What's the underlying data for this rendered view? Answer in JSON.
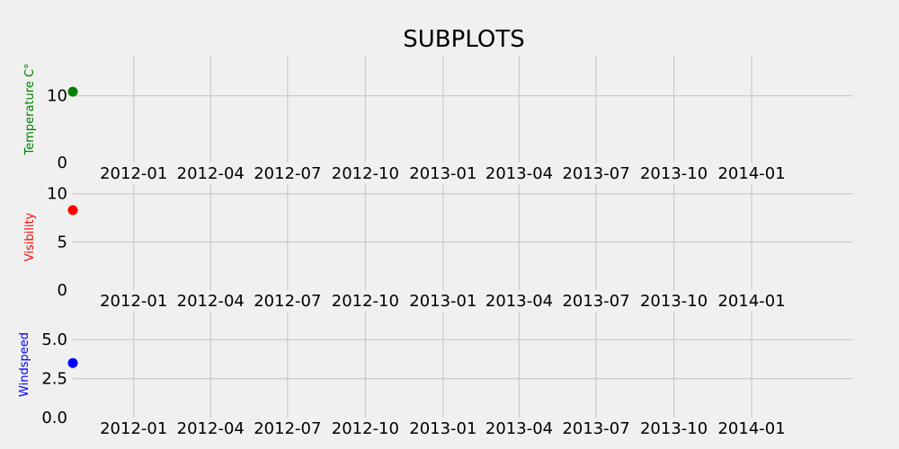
{
  "chart_data": {
    "title": "SUBPLOTS",
    "type": "scatter",
    "x_range": [
      "2011-10-21",
      "2014-04-30"
    ],
    "x_ticks": [
      "2012-01",
      "2012-04",
      "2012-07",
      "2012-10",
      "2013-01",
      "2013-04",
      "2013-07",
      "2013-10",
      "2014-01"
    ],
    "grid": true,
    "subplots": [
      {
        "ylabel": "Temperature C°",
        "color": "#008000",
        "ylim": [
          0,
          16
        ],
        "yticks": [
          "0",
          "10"
        ],
        "ytick_values": [
          0,
          10
        ],
        "points": [
          {
            "x": "2011-10-21",
            "y": 10.6
          }
        ]
      },
      {
        "ylabel": "Visibility",
        "color": "#ff0000",
        "ylim": [
          0,
          11
        ],
        "yticks": [
          "0",
          "5",
          "10"
        ],
        "ytick_values": [
          0,
          5,
          10
        ],
        "points": [
          {
            "x": "2011-10-21",
            "y": 8.3
          }
        ]
      },
      {
        "ylabel": "Windspeed",
        "color": "#0000ff",
        "ylim": [
          0,
          6.8
        ],
        "yticks": [
          "0.0",
          "2.5",
          "5.0"
        ],
        "ytick_values": [
          0,
          2.5,
          5.0
        ],
        "points": [
          {
            "x": "2011-10-21",
            "y": 3.5
          }
        ]
      }
    ]
  }
}
